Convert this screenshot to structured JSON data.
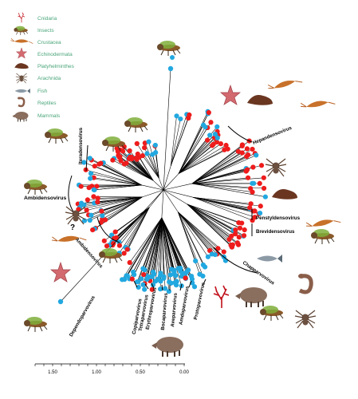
{
  "legend": [
    {
      "label": "Cnidaria",
      "icon": "coral-icon",
      "color": "#d0202a"
    },
    {
      "label": "Insects",
      "icon": "fly-icon",
      "color": "#7a5a3a"
    },
    {
      "label": "Crustacea",
      "icon": "shrimp-icon",
      "color": "#c8712a"
    },
    {
      "label": "Echinodermata",
      "icon": "starfish-icon",
      "color": "#d36a6f"
    },
    {
      "label": "Platyhelminthes",
      "icon": "flatworm-icon",
      "color": "#6a3620"
    },
    {
      "label": "Arachnida",
      "icon": "spider-icon",
      "color": "#6b5040"
    },
    {
      "label": "Fish",
      "icon": "fish-icon",
      "color": "#7a8a96"
    },
    {
      "label": "Reptiles",
      "icon": "snake-icon",
      "color": "#8a5e4a"
    },
    {
      "label": "Mammals",
      "icon": "boar-icon",
      "color": "#8a6e5e"
    }
  ],
  "clades": {
    "hepandensovirus": "Hepandensovirus",
    "iteradensovirus": "Iteradensovirus",
    "ambidensovirus_left": "Ambidensovirus",
    "ambidensovirus_lower": "Ambidensovirus",
    "penstyldensovirus": "Penstyldensovirus",
    "brevidensovirus": "Brevidensovirus",
    "chapparvovirus": "Chapparvovirus",
    "dependoparvovirus": "Dependoparvovirus",
    "copiparvovirus": "Copiparvovirus",
    "tetraparvovirus": "Tetraparvovirus",
    "erythroparvovirus": "Erythroparvovirus",
    "bocaparvovirus": "Bocaparvovirus",
    "aveparvovirus": "Aveparvovirus",
    "amdoparvovirus": "Amdoparvovirus",
    "protoparvovirus": "Protoparvovirus"
  },
  "unknown_host_mark": "?",
  "scale_axis": {
    "ticks": [
      "1.50",
      "1.00",
      "0.50",
      "0.00"
    ]
  },
  "colors": {
    "invertebrate_tip": "#ee1c1c",
    "vertebrate_tip": "#22a8e0",
    "branch": "#000000",
    "legend_text": "#4aa57a"
  }
}
